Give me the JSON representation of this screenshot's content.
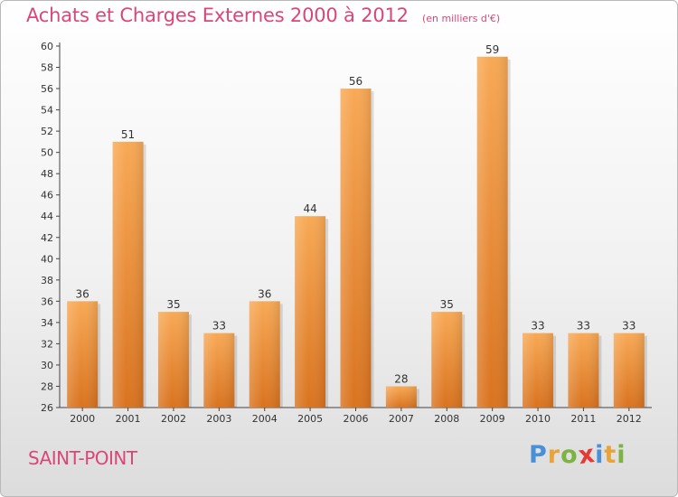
{
  "chart_data": {
    "type": "bar",
    "title": "Achats et Charges Externes 2000 à 2012",
    "subtitle": "(en milliers d'€)",
    "xlabel": "",
    "ylabel": "",
    "categories": [
      "2000",
      "2001",
      "2002",
      "2003",
      "2004",
      "2005",
      "2006",
      "2007",
      "2008",
      "2009",
      "2010",
      "2011",
      "2012"
    ],
    "values": [
      36,
      51,
      35,
      33,
      36,
      44,
      56,
      28,
      35,
      59,
      33,
      33,
      33
    ],
    "ylim": [
      26,
      60
    ],
    "ytick_step": 2,
    "grid": false,
    "bar_color": "#f0913a"
  },
  "place": "SAINT-POINT",
  "logo": {
    "letters": [
      "P",
      "r",
      "o",
      "x",
      "i",
      "t",
      "i"
    ],
    "colors": [
      "#4a90d9",
      "#e8a33b",
      "#7cb342",
      "#e53935",
      "#4a90d9",
      "#e8a33b",
      "#7cb342"
    ]
  }
}
